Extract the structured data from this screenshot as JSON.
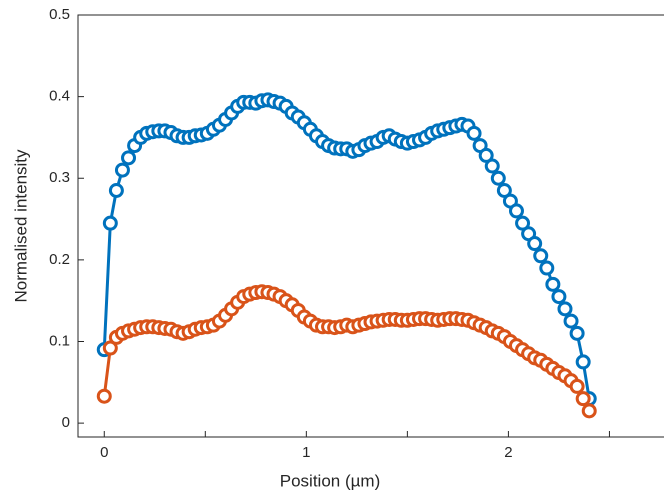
{
  "chart_data": {
    "type": "line",
    "xlabel": "Position (µm)",
    "ylabel": "Normalised intensity",
    "x": [
      0,
      0.03,
      0.06,
      0.09,
      0.12,
      0.15,
      0.18,
      0.21,
      0.24,
      0.27,
      0.3,
      0.33,
      0.36,
      0.39,
      0.42,
      0.45,
      0.48,
      0.51,
      0.54,
      0.57,
      0.6,
      0.63,
      0.66,
      0.69,
      0.72,
      0.75,
      0.78,
      0.81,
      0.84,
      0.87,
      0.9,
      0.93,
      0.96,
      0.99,
      1.02,
      1.05,
      1.08,
      1.11,
      1.14,
      1.17,
      1.2,
      1.23,
      1.26,
      1.29,
      1.32,
      1.35,
      1.38,
      1.41,
      1.44,
      1.47,
      1.5,
      1.53,
      1.56,
      1.59,
      1.62,
      1.65,
      1.68,
      1.71,
      1.74,
      1.77,
      1.8,
      1.83,
      1.86,
      1.89,
      1.92,
      1.95,
      1.98,
      2.01,
      2.04,
      2.07,
      2.1,
      2.13,
      2.16,
      2.19,
      2.22,
      2.25,
      2.28,
      2.31,
      2.34,
      2.37,
      2.4
    ],
    "series": [
      {
        "color": "#0072BD",
        "values": [
          0.09,
          0.245,
          0.285,
          0.31,
          0.325,
          0.34,
          0.35,
          0.355,
          0.357,
          0.358,
          0.358,
          0.356,
          0.352,
          0.35,
          0.35,
          0.352,
          0.353,
          0.355,
          0.36,
          0.365,
          0.372,
          0.38,
          0.388,
          0.393,
          0.393,
          0.392,
          0.395,
          0.396,
          0.394,
          0.392,
          0.388,
          0.38,
          0.375,
          0.368,
          0.36,
          0.352,
          0.345,
          0.34,
          0.337,
          0.336,
          0.336,
          0.333,
          0.335,
          0.34,
          0.343,
          0.345,
          0.35,
          0.352,
          0.348,
          0.345,
          0.343,
          0.345,
          0.347,
          0.35,
          0.355,
          0.358,
          0.36,
          0.362,
          0.364,
          0.366,
          0.364,
          0.355,
          0.34,
          0.328,
          0.315,
          0.3,
          0.285,
          0.272,
          0.26,
          0.245,
          0.232,
          0.22,
          0.205,
          0.19,
          0.17,
          0.155,
          0.14,
          0.125,
          0.11,
          0.075,
          0.03
        ]
      },
      {
        "color": "#D95319",
        "values": [
          0.033,
          0.092,
          0.105,
          0.11,
          0.113,
          0.115,
          0.117,
          0.118,
          0.118,
          0.117,
          0.116,
          0.115,
          0.112,
          0.11,
          0.112,
          0.115,
          0.117,
          0.118,
          0.12,
          0.125,
          0.132,
          0.14,
          0.148,
          0.155,
          0.158,
          0.16,
          0.161,
          0.16,
          0.158,
          0.155,
          0.15,
          0.145,
          0.138,
          0.13,
          0.125,
          0.12,
          0.118,
          0.118,
          0.117,
          0.118,
          0.12,
          0.118,
          0.12,
          0.122,
          0.124,
          0.125,
          0.126,
          0.127,
          0.127,
          0.126,
          0.126,
          0.127,
          0.128,
          0.128,
          0.127,
          0.126,
          0.127,
          0.128,
          0.128,
          0.127,
          0.126,
          0.123,
          0.12,
          0.117,
          0.113,
          0.11,
          0.106,
          0.1,
          0.095,
          0.09,
          0.085,
          0.08,
          0.077,
          0.072,
          0.067,
          0.062,
          0.058,
          0.052,
          0.045,
          0.03,
          0.015
        ]
      }
    ],
    "xlim": [
      -0.13,
      2.77
    ],
    "xticks": [
      0,
      1,
      2
    ],
    "xminorticks": [
      0.5,
      1.5,
      2.5
    ],
    "ylim": [
      -0.017,
      0.5
    ],
    "yticks": [
      0,
      0.1,
      0.2,
      0.3,
      0.4,
      0.5
    ]
  }
}
